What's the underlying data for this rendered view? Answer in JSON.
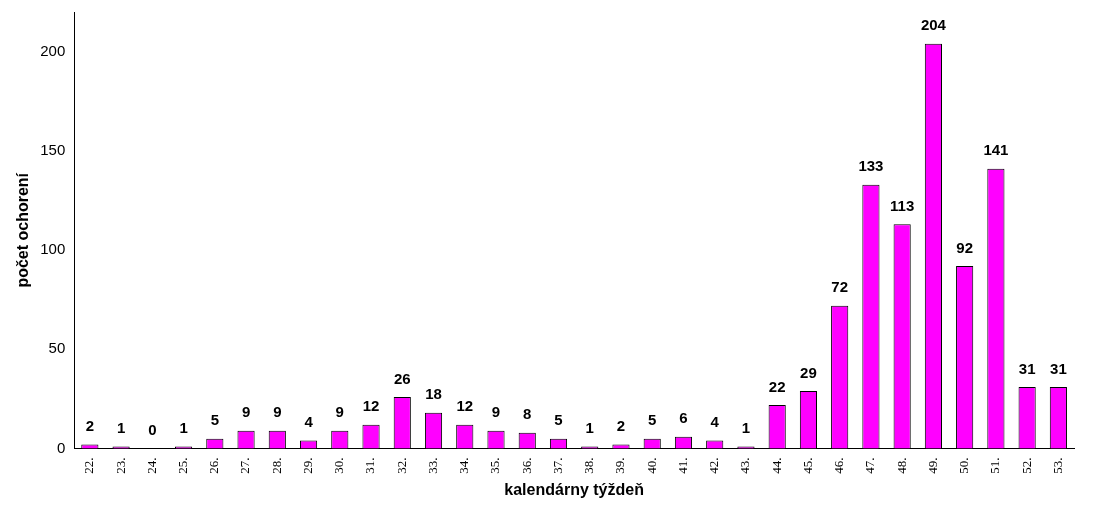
{
  "chart_data": {
    "type": "bar",
    "xlabel": "kalendárny týždeň",
    "ylabel": "počet ochorení",
    "categories": [
      "22.",
      "23.",
      "24.",
      "25.",
      "26.",
      "27.",
      "28.",
      "29.",
      "30.",
      "31.",
      "32.",
      "33.",
      "34.",
      "35.",
      "36.",
      "37.",
      "38.",
      "39.",
      "40.",
      "41.",
      "42.",
      "43.",
      "44.",
      "45.",
      "46.",
      "47.",
      "48.",
      "49.",
      "50.",
      "51.",
      "52.",
      "53."
    ],
    "values": [
      2,
      1,
      0,
      1,
      5,
      9,
      9,
      4,
      9,
      12,
      26,
      18,
      12,
      9,
      8,
      5,
      1,
      2,
      5,
      6,
      4,
      1,
      22,
      29,
      72,
      133,
      113,
      204,
      92,
      141,
      31,
      31
    ],
    "color": "#ff00ff",
    "ylim": [
      0,
      220
    ],
    "yticks": [
      0,
      50,
      100,
      150,
      200
    ],
    "grid": false,
    "legend": false,
    "data_labels": true
  }
}
